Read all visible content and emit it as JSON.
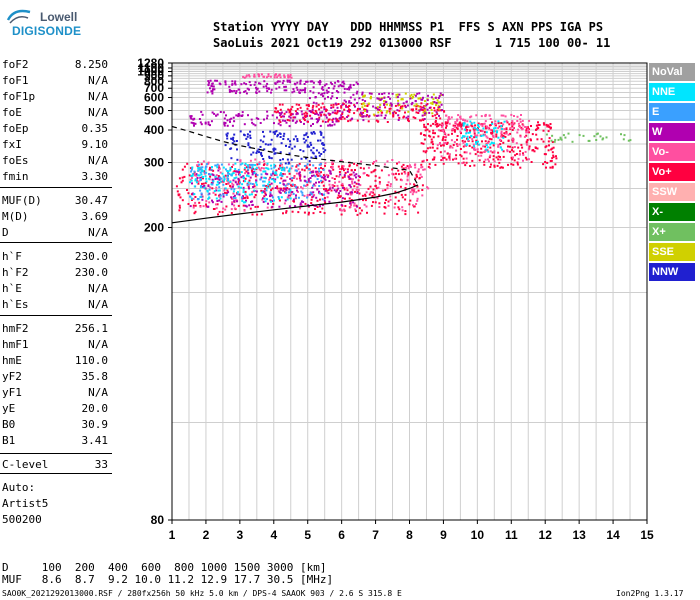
{
  "logo": {
    "top": "Lowell",
    "main": "DIGISONDE"
  },
  "header": {
    "line1": "Station YYYY DAY   DDD HHMMSS P1  FFS S AXN PPS IGA PS",
    "line2": "SaoLuis 2021 Oct19 292 013000 RSF      1 715 100 00- 11"
  },
  "params": [
    {
      "key": "foF2",
      "value": "8.250"
    },
    {
      "key": "foF1",
      "value": "N/A"
    },
    {
      "key": "foF1p",
      "value": "N/A"
    },
    {
      "key": "foE",
      "value": "N/A"
    },
    {
      "key": "foEp",
      "value": "0.35"
    },
    {
      "key": "fxI",
      "value": "9.10"
    },
    {
      "key": "foEs",
      "value": "N/A"
    },
    {
      "key": "fmin",
      "value": "3.30"
    },
    {
      "key": "MUF(D)",
      "value": "30.47"
    },
    {
      "key": "M(D)",
      "value": "3.69"
    },
    {
      "key": "D",
      "value": "N/A"
    },
    {
      "key": "h`F",
      "value": "230.0"
    },
    {
      "key": "h`F2",
      "value": "230.0"
    },
    {
      "key": "h`E",
      "value": "N/A"
    },
    {
      "key": "h`Es",
      "value": "N/A"
    },
    {
      "key": "hmF2",
      "value": "256.1"
    },
    {
      "key": "hmF1",
      "value": "N/A"
    },
    {
      "key": "hmE",
      "value": "110.0"
    },
    {
      "key": "yF2",
      "value": "35.8"
    },
    {
      "key": "yF1",
      "value": "N/A"
    },
    {
      "key": "yE",
      "value": "20.0"
    },
    {
      "key": "B0",
      "value": "30.9"
    },
    {
      "key": "B1",
      "value": "3.41"
    },
    {
      "key": "C-level",
      "value": "33"
    }
  ],
  "auto": {
    "label": "Auto:",
    "artist": "Artist5",
    "version": "500200"
  },
  "footer": {
    "d_row": "D     100  200  400  600  800 1000 1500 3000 [km]",
    "muf_row": "MUF   8.6  8.7  9.2 10.0 11.2 12.9 17.7 30.5 [MHz]",
    "file_info": "SAO0K_2021292013000.RSF / 280fx256h 50 kHz 5.0 km / DPS-4 SAAOK 903 / 2.6 S 315.8 E",
    "version": "Ion2Png 1.3.17"
  },
  "legend": [
    {
      "label": "NoVal",
      "color": "#a0a0a0"
    },
    {
      "label": "NNE",
      "color": "#00e5ff"
    },
    {
      "label": "E",
      "color": "#3aa0ff"
    },
    {
      "label": "W",
      "color": "#b000b0"
    },
    {
      "label": "Vo-",
      "color": "#ff4fa0"
    },
    {
      "label": "Vo+",
      "color": "#ff0040"
    },
    {
      "label": "SSW",
      "color": "#ffb0b0"
    },
    {
      "label": "X-",
      "color": "#008000"
    },
    {
      "label": "X+",
      "color": "#70c060"
    },
    {
      "label": "SSE",
      "color": "#d0d000"
    },
    {
      "label": "NNW",
      "color": "#2020d0"
    }
  ],
  "chart_data": {
    "type": "scatter",
    "x_ticks": [
      1,
      2,
      3,
      4,
      5,
      6,
      7,
      8,
      9,
      10,
      11,
      12,
      13,
      14,
      15
    ],
    "y_ticks": [
      80,
      200,
      300,
      400,
      500,
      600,
      700,
      800,
      900,
      1000,
      1100,
      1280
    ],
    "y_scale": "reciprocal",
    "xlim": [
      1,
      15
    ],
    "ylim": [
      80,
      1280
    ],
    "grid": true,
    "echo_clusters": [
      {
        "series": "Vo+",
        "xmin": 1.1,
        "xmax": 8.4,
        "ymin": 215,
        "ymax": 300,
        "n": 420
      },
      {
        "series": "Vo-",
        "xmin": 1.5,
        "xmax": 8.6,
        "ymin": 220,
        "ymax": 310,
        "n": 260
      },
      {
        "series": "W",
        "xmin": 1.5,
        "xmax": 6.5,
        "ymin": 225,
        "ymax": 285,
        "n": 220
      },
      {
        "series": "NNE",
        "xmin": 1.5,
        "xmax": 4.5,
        "ymin": 230,
        "ymax": 300,
        "n": 160
      },
      {
        "series": "E",
        "xmin": 1.5,
        "xmax": 5.5,
        "ymin": 235,
        "ymax": 300,
        "n": 120
      },
      {
        "series": "NNW",
        "xmin": 2.5,
        "xmax": 5.5,
        "ymin": 300,
        "ymax": 400,
        "n": 140
      },
      {
        "series": "Vo+",
        "xmin": 8.3,
        "xmax": 12.3,
        "ymin": 290,
        "ymax": 440,
        "n": 360
      },
      {
        "series": "Vo-",
        "xmin": 8.8,
        "xmax": 11.5,
        "ymin": 300,
        "ymax": 480,
        "n": 180
      },
      {
        "series": "NNE",
        "xmin": 9.5,
        "xmax": 10.8,
        "ymin": 330,
        "ymax": 450,
        "n": 60
      },
      {
        "series": "X+",
        "xmin": 12.0,
        "xmax": 14.5,
        "ymin": 360,
        "ymax": 390,
        "n": 30
      },
      {
        "series": "W",
        "xmin": 1.5,
        "xmax": 6.0,
        "ymin": 420,
        "ymax": 500,
        "n": 140
      },
      {
        "series": "Vo+",
        "xmin": 4.0,
        "xmax": 9.0,
        "ymin": 440,
        "ymax": 560,
        "n": 200
      },
      {
        "series": "SSE",
        "xmin": 6.5,
        "xmax": 9.0,
        "ymin": 480,
        "ymax": 650,
        "n": 80
      },
      {
        "series": "W",
        "xmin": 5.0,
        "xmax": 9.0,
        "ymin": 450,
        "ymax": 660,
        "n": 140
      },
      {
        "series": "W",
        "xmin": 2.0,
        "xmax": 6.5,
        "ymin": 650,
        "ymax": 830,
        "n": 160
      },
      {
        "series": "Vo-",
        "xmin": 3.0,
        "xmax": 4.5,
        "ymin": 880,
        "ymax": 960,
        "n": 40
      }
    ],
    "profile_solid": [
      [
        1.0,
        205
      ],
      [
        2.0,
        210
      ],
      [
        3.0,
        215
      ],
      [
        4.0,
        220
      ],
      [
        5.0,
        225
      ],
      [
        6.0,
        230
      ],
      [
        7.0,
        237
      ],
      [
        7.6,
        243
      ],
      [
        8.0,
        250
      ],
      [
        8.25,
        256
      ]
    ],
    "profile_dashed": [
      [
        1.0,
        415
      ],
      [
        1.5,
        395
      ],
      [
        2.0,
        375
      ],
      [
        2.5,
        358
      ],
      [
        3.0,
        345
      ],
      [
        3.5,
        335
      ],
      [
        4.0,
        325
      ],
      [
        5.0,
        312
      ],
      [
        6.0,
        302
      ],
      [
        7.0,
        293
      ],
      [
        8.0,
        283
      ],
      [
        8.25,
        256
      ]
    ]
  }
}
